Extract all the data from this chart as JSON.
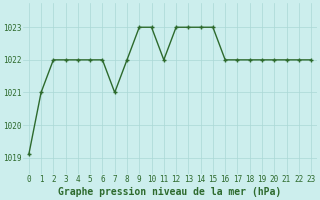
{
  "x": [
    0,
    1,
    2,
    3,
    4,
    5,
    6,
    7,
    8,
    9,
    10,
    11,
    12,
    13,
    14,
    15,
    16,
    17,
    18,
    19,
    20,
    21,
    22,
    23
  ],
  "y": [
    1019.1,
    1021.0,
    1022.0,
    1022.0,
    1022.0,
    1022.0,
    1022.0,
    1021.0,
    1022.0,
    1023.0,
    1023.0,
    1022.0,
    1023.0,
    1023.0,
    1023.0,
    1023.0,
    1022.0,
    1022.0,
    1022.0,
    1022.0,
    1022.0,
    1022.0,
    1022.0,
    1022.0
  ],
  "line_color": "#2d6a2d",
  "marker": "+",
  "marker_size": 3,
  "bg_color": "#cceeed",
  "grid_color": "#aad8d6",
  "xlabel": "Graphe pression niveau de la mer (hPa)",
  "tick_color": "#2d6a2d",
  "ylim": [
    1018.5,
    1023.75
  ],
  "yticks": [
    1019,
    1020,
    1021,
    1022,
    1023
  ],
  "xlim": [
    -0.5,
    23.5
  ],
  "xticks": [
    0,
    1,
    2,
    3,
    4,
    5,
    6,
    7,
    8,
    9,
    10,
    11,
    12,
    13,
    14,
    15,
    16,
    17,
    18,
    19,
    20,
    21,
    22,
    23
  ],
  "tick_fontsize": 5.5,
  "xlabel_fontsize": 7,
  "linewidth": 1.0
}
